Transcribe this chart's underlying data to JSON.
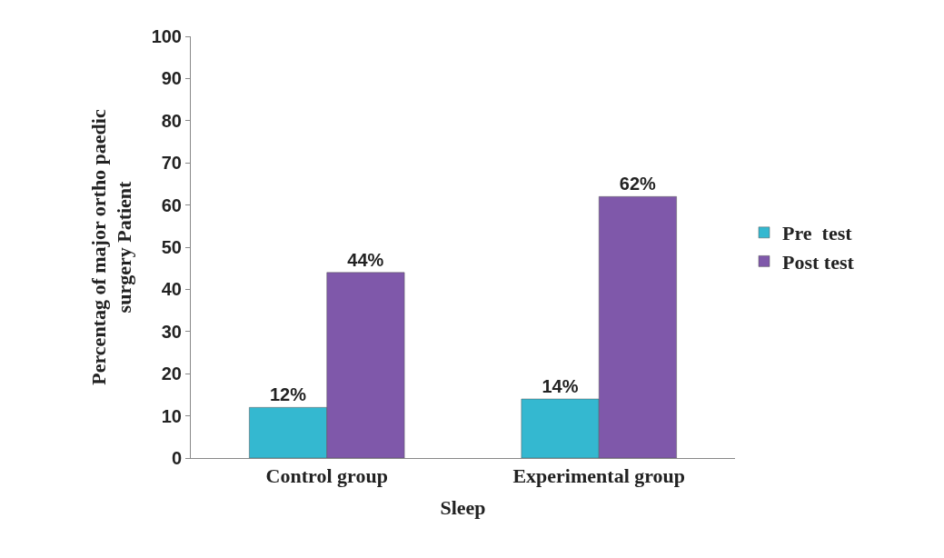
{
  "chart_data": {
    "type": "bar",
    "xlabel": "Sleep",
    "ylabel": "Percentag of major ortho paedic\nsurgery Patient",
    "categories": [
      "Control group",
      "Experimental group"
    ],
    "series": [
      {
        "name": "Pre  test",
        "color": "#34b8d0",
        "values": [
          12,
          14
        ],
        "value_labels": [
          "12%",
          "14%"
        ]
      },
      {
        "name": "Post test",
        "color": "#7f58aa",
        "values": [
          44,
          62
        ],
        "value_labels": [
          "44%",
          "62%"
        ]
      }
    ],
    "ylim": [
      0,
      100
    ],
    "yticks": [
      0,
      10,
      20,
      30,
      40,
      50,
      60,
      70,
      80,
      90,
      100
    ],
    "legend": "right"
  }
}
